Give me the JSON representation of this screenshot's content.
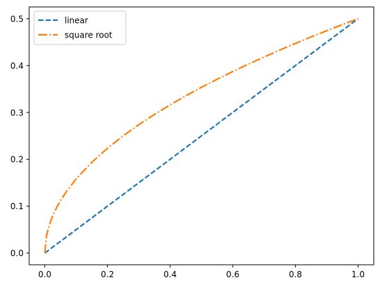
{
  "chart_data": {
    "type": "line",
    "title": "",
    "xlabel": "",
    "ylabel": "",
    "xlim": [
      -0.05,
      1.05
    ],
    "ylim": [
      -0.025,
      0.525
    ],
    "xticks": [
      0.0,
      0.2,
      0.4,
      0.6,
      0.8,
      1.0
    ],
    "yticks": [
      0.0,
      0.1,
      0.2,
      0.3,
      0.4,
      0.5
    ],
    "xtick_labels": [
      "0.0",
      "0.2",
      "0.4",
      "0.6",
      "0.8",
      "1.0"
    ],
    "ytick_labels": [
      "0.0",
      "0.1",
      "0.2",
      "0.3",
      "0.4",
      "0.5"
    ],
    "grid": false,
    "legend_position": "top-left",
    "x": [
      0.0,
      0.005,
      0.01,
      0.02,
      0.03,
      0.04,
      0.05,
      0.07,
      0.1,
      0.15,
      0.2,
      0.25,
      0.3,
      0.35,
      0.4,
      0.45,
      0.5,
      0.55,
      0.6,
      0.65,
      0.7,
      0.75,
      0.8,
      0.85,
      0.9,
      0.95,
      1.0
    ],
    "series": [
      {
        "name": "linear",
        "color": "#1f77b4",
        "dash": "dashed",
        "values": [
          0.0,
          0.0025,
          0.005,
          0.01,
          0.015,
          0.02,
          0.025,
          0.035,
          0.05,
          0.075,
          0.1,
          0.125,
          0.15,
          0.175,
          0.2,
          0.225,
          0.25,
          0.275,
          0.3,
          0.325,
          0.35,
          0.375,
          0.4,
          0.425,
          0.45,
          0.475,
          0.5
        ]
      },
      {
        "name": "square root",
        "color": "#ff7f0e",
        "dash": "dashdot",
        "values": [
          0.0,
          0.0354,
          0.05,
          0.0707,
          0.0866,
          0.1,
          0.1118,
          0.1323,
          0.1581,
          0.1936,
          0.2236,
          0.25,
          0.2739,
          0.2958,
          0.3162,
          0.3354,
          0.3536,
          0.3708,
          0.3873,
          0.4031,
          0.4183,
          0.433,
          0.4472,
          0.461,
          0.4743,
          0.4873,
          0.5
        ]
      }
    ]
  }
}
